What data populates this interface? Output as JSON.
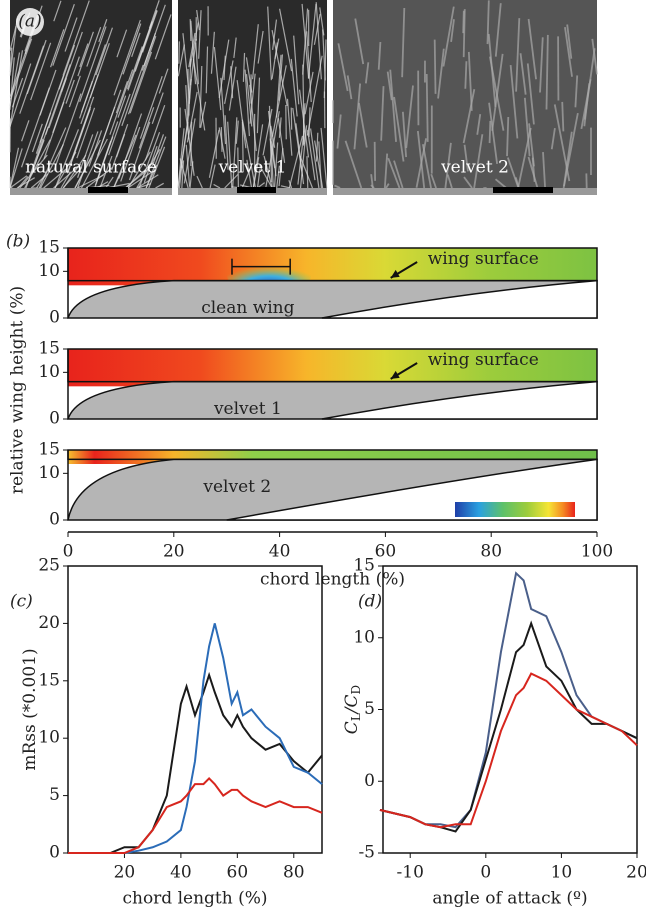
{
  "panel_a": {
    "label": "(a)",
    "images": [
      {
        "caption": "natural surface"
      },
      {
        "caption": "velvet 1"
      },
      {
        "caption": "velvet 2"
      }
    ]
  },
  "panel_b": {
    "label": "(b)",
    "ylabel": "relative wing height (%)",
    "xlabel": "chord length (%)",
    "xlim": [
      0,
      100
    ],
    "xticks": [
      0,
      20,
      40,
      60,
      80,
      100
    ],
    "ylim": [
      0,
      15
    ],
    "yticks": [
      0,
      10,
      15
    ],
    "strips": [
      {
        "annotation": "clean wing",
        "pointer": "wing surface"
      },
      {
        "annotation": "velvet 1",
        "pointer": "wing surface"
      },
      {
        "annotation": "velvet 2"
      }
    ]
  },
  "chart_data": [
    {
      "type": "line",
      "label": "(c)",
      "xlabel": "chord length (%)",
      "ylabel": [
        "mRss (*0.001)"
      ],
      "x": [
        0,
        5,
        10,
        15,
        20,
        25,
        30,
        35,
        40,
        42,
        45,
        48,
        50,
        52,
        55,
        58,
        60,
        62,
        65,
        70,
        75,
        80,
        85,
        90
      ],
      "series": [
        {
          "color": "#1a1a1a",
          "values": [
            0,
            0,
            0,
            0,
            0.5,
            0.5,
            2,
            5,
            13,
            14.5,
            12,
            14,
            15.5,
            14,
            12,
            11,
            12,
            11,
            10,
            9,
            9.5,
            8,
            7,
            8.5
          ]
        },
        {
          "color": "#2b6cb8",
          "values": [
            0,
            0,
            0,
            0,
            0,
            0.2,
            0.5,
            1,
            2,
            4,
            8,
            15,
            18,
            20,
            17,
            13,
            14,
            12,
            12.5,
            11,
            10,
            7.5,
            7,
            6
          ]
        },
        {
          "color": "#d7261e",
          "values": [
            0,
            0,
            0,
            0,
            0,
            0.5,
            2,
            4,
            4.5,
            5,
            6,
            6,
            6.5,
            6,
            5,
            5.5,
            5.5,
            5,
            4.5,
            4,
            4.5,
            4,
            4,
            3.5
          ]
        }
      ],
      "xlim": [
        0,
        90
      ],
      "xticks": [
        20,
        40,
        60,
        80
      ],
      "ylim": [
        0,
        25
      ],
      "yticks": [
        0,
        5,
        10,
        15,
        20,
        25
      ]
    },
    {
      "type": "line",
      "label": "(d)",
      "xlabel": "angle of attack (º)",
      "ylabel": [
        "C",
        "L",
        "/C",
        "D"
      ],
      "x": [
        -14,
        -10,
        -8,
        -6,
        -4,
        -2,
        0,
        2,
        4,
        5,
        6,
        8,
        10,
        12,
        14,
        16,
        18,
        20
      ],
      "series": [
        {
          "color": "#4a5f8a",
          "values": [
            -2,
            -2.5,
            -3,
            -3,
            -3.2,
            -2,
            2,
            9,
            14.5,
            14,
            12,
            11.5,
            9,
            6,
            4.5,
            4,
            3.5,
            3
          ]
        },
        {
          "color": "#1a1a1a",
          "values": [
            -2,
            -2.5,
            -3,
            -3.2,
            -3.5,
            -2,
            1.5,
            5,
            9,
            9.5,
            11,
            8,
            7,
            5,
            4,
            4,
            3.5,
            3
          ]
        },
        {
          "color": "#d7261e",
          "values": [
            -2,
            -2.5,
            -3,
            -3.2,
            -3,
            -3,
            0,
            3.5,
            6,
            6.5,
            7.5,
            7,
            6,
            5,
            4.5,
            4,
            3.5,
            2.5
          ]
        }
      ],
      "xlim": [
        -13.6,
        20
      ],
      "xticks": [
        -10,
        0,
        10,
        20
      ],
      "ylim": [
        -5,
        15
      ],
      "yticks": [
        -5,
        0,
        5,
        10,
        15
      ]
    }
  ]
}
